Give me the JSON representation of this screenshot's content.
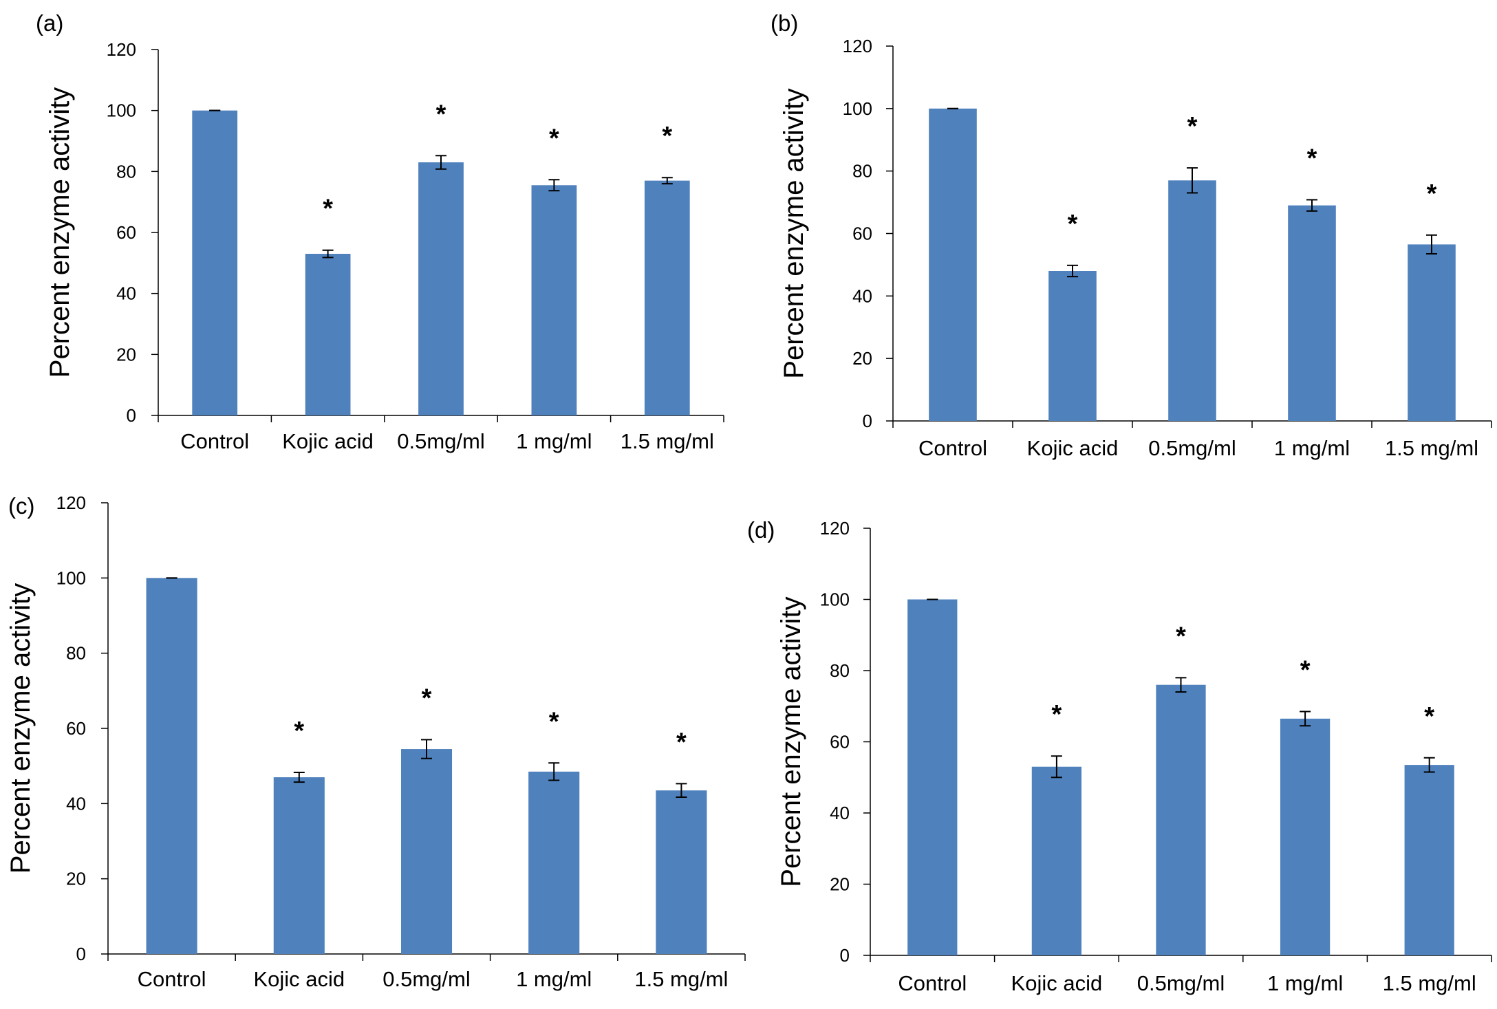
{
  "chart_data": [
    {
      "type": "bar",
      "panel_label": "(a)",
      "ylabel": "Percent enzyme activity",
      "ylim": [
        0,
        120
      ],
      "yticks": [
        0,
        20,
        40,
        60,
        80,
        100,
        120
      ],
      "categories": [
        "Control",
        "Kojic acid",
        "0.5mg/ml",
        "1 mg/ml",
        "1.5 mg/ml"
      ],
      "values": [
        100,
        53,
        83,
        75.5,
        77
      ],
      "errors": [
        0,
        1.2,
        2.2,
        1.8,
        1.0
      ],
      "significance": [
        "",
        "*",
        "*",
        "*",
        "*"
      ],
      "bar_color": "#4f81bd"
    },
    {
      "type": "bar",
      "panel_label": "(b)",
      "ylabel": "Percent enzyme activity",
      "ylim": [
        0,
        120
      ],
      "yticks": [
        0,
        20,
        40,
        60,
        80,
        100,
        120
      ],
      "categories": [
        "Control",
        "Kojic acid",
        "0.5mg/ml",
        "1 mg/ml",
        "1.5 mg/ml"
      ],
      "values": [
        100,
        48,
        77,
        69,
        56.5
      ],
      "errors": [
        0,
        1.8,
        4.0,
        1.8,
        3.0
      ],
      "significance": [
        "",
        "*",
        "*",
        "*",
        "*"
      ],
      "bar_color": "#4f81bd"
    },
    {
      "type": "bar",
      "panel_label": "(c)",
      "ylabel": "Percent enzyme activity",
      "ylim": [
        0,
        120
      ],
      "yticks": [
        0,
        20,
        40,
        60,
        80,
        100,
        120
      ],
      "categories": [
        "Control",
        "Kojic acid",
        "0.5mg/ml",
        "1 mg/ml",
        "1.5 mg/ml"
      ],
      "values": [
        100,
        47,
        54.5,
        48.5,
        43.5
      ],
      "errors": [
        0,
        1.3,
        2.5,
        2.3,
        1.8
      ],
      "significance": [
        "",
        "*",
        "*",
        "*",
        "*"
      ],
      "bar_color": "#4f81bd"
    },
    {
      "type": "bar",
      "panel_label": "(d)",
      "ylabel": "Percent enzyme activity",
      "ylim": [
        0,
        120
      ],
      "yticks": [
        0,
        20,
        40,
        60,
        80,
        100,
        120
      ],
      "categories": [
        "Control",
        "Kojic acid",
        "0.5mg/ml",
        "1 mg/ml",
        "1.5 mg/ml"
      ],
      "values": [
        100,
        53,
        76,
        66.5,
        53.5
      ],
      "errors": [
        0,
        3.0,
        2.0,
        2.0,
        2.0
      ],
      "significance": [
        "",
        "*",
        "*",
        "*",
        "*"
      ],
      "bar_color": "#4f81bd"
    }
  ]
}
